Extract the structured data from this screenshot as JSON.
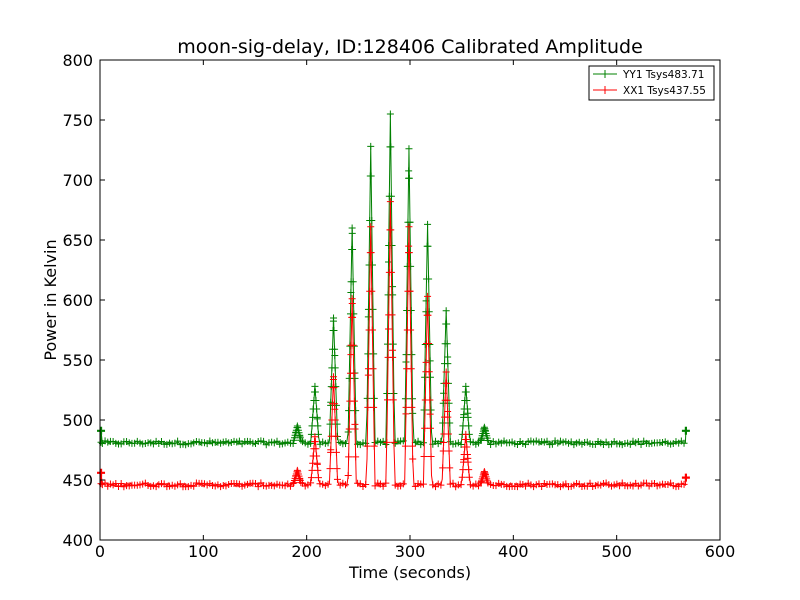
{
  "chart_data": {
    "type": "line",
    "title": "moon-sig-delay, ID:128406 Calibrated Amplitude",
    "xlabel": "Time (seconds)",
    "ylabel": "Power in Kelvin",
    "xlim": [
      0,
      600
    ],
    "ylim": [
      400,
      800
    ],
    "xticks": [
      0,
      100,
      200,
      300,
      400,
      500,
      600
    ],
    "yticks": [
      400,
      450,
      500,
      550,
      600,
      650,
      700,
      750,
      800
    ],
    "grid": false,
    "legend_position": "top-right",
    "x_range_data": [
      1,
      567
    ],
    "series": [
      {
        "name": "YY1 Tsys483.71",
        "color": "#008000",
        "marker": "+",
        "baseline": 481,
        "edge_values": [
          491,
          491
        ],
        "peaks": [
          {
            "x": 191,
            "y": 495
          },
          {
            "x": 208,
            "y": 528
          },
          {
            "x": 226,
            "y": 585
          },
          {
            "x": 244,
            "y": 660
          },
          {
            "x": 262,
            "y": 728
          },
          {
            "x": 281,
            "y": 755
          },
          {
            "x": 299,
            "y": 726
          },
          {
            "x": 317,
            "y": 663
          },
          {
            "x": 335,
            "y": 591
          },
          {
            "x": 354,
            "y": 528
          },
          {
            "x": 372,
            "y": 494
          }
        ]
      },
      {
        "name": "XX1 Tsys437.55",
        "color": "#ff0000",
        "marker": "+",
        "baseline": 446,
        "edge_values": [
          456,
          452
        ],
        "peaks": [
          {
            "x": 191,
            "y": 458
          },
          {
            "x": 208,
            "y": 486
          },
          {
            "x": 226,
            "y": 536
          },
          {
            "x": 244,
            "y": 601
          },
          {
            "x": 262,
            "y": 661
          },
          {
            "x": 281,
            "y": 682
          },
          {
            "x": 299,
            "y": 661
          },
          {
            "x": 317,
            "y": 603
          },
          {
            "x": 335,
            "y": 540
          },
          {
            "x": 354,
            "y": 488
          },
          {
            "x": 372,
            "y": 457
          }
        ]
      }
    ]
  }
}
